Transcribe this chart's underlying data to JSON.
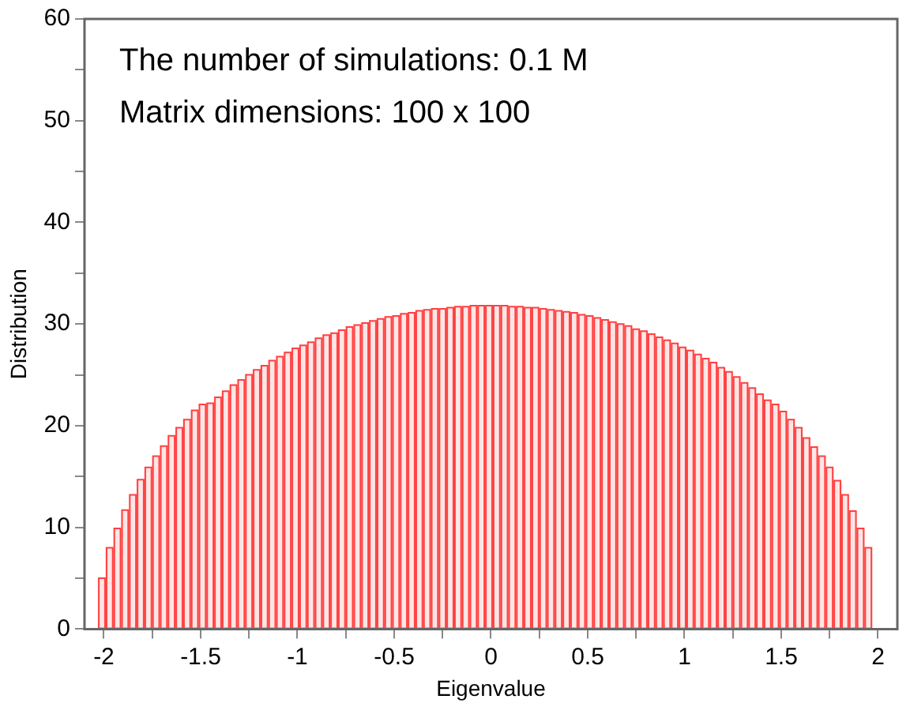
{
  "chart_data": {
    "type": "histogram",
    "xlabel": "Eigenvalue",
    "ylabel": "Distribution",
    "annotations": [
      "The number of simulations: 0.1 M",
      "Matrix dimensions: 100 x 100"
    ],
    "bins": [
      -2.03,
      -1.99,
      -1.95,
      -1.91,
      -1.87,
      -1.83,
      -1.79,
      -1.75,
      -1.71,
      -1.67,
      -1.63,
      -1.59,
      -1.55,
      -1.51,
      -1.47,
      -1.43,
      -1.39,
      -1.35,
      -1.31,
      -1.27,
      -1.23,
      -1.19,
      -1.15,
      -1.11,
      -1.07,
      -1.03,
      -0.99,
      -0.95,
      -0.91,
      -0.87,
      -0.83,
      -0.79,
      -0.75,
      -0.71,
      -0.67,
      -0.63,
      -0.59,
      -0.55,
      -0.51,
      -0.47,
      -0.43,
      -0.39,
      -0.35,
      -0.31,
      -0.27,
      -0.23,
      -0.19,
      -0.15,
      -0.11,
      -0.07,
      -0.03,
      0.01,
      0.05,
      0.09,
      0.13,
      0.17,
      0.21,
      0.25,
      0.29,
      0.33,
      0.37,
      0.41,
      0.45,
      0.49,
      0.53,
      0.57,
      0.61,
      0.65,
      0.69,
      0.73,
      0.77,
      0.81,
      0.85,
      0.89,
      0.93,
      0.97,
      1.01,
      1.05,
      1.09,
      1.13,
      1.17,
      1.21,
      1.25,
      1.29,
      1.33,
      1.37,
      1.41,
      1.45,
      1.49,
      1.53,
      1.57,
      1.61,
      1.65,
      1.69,
      1.73,
      1.77,
      1.81,
      1.85,
      1.89,
      1.93,
      1.97
    ],
    "values": [
      5.0,
      8.0,
      9.9,
      11.7,
      13.2,
      14.7,
      15.9,
      17.0,
      18.0,
      19.0,
      19.8,
      20.6,
      21.5,
      22.1,
      22.2,
      22.8,
      23.4,
      24.0,
      24.5,
      25.0,
      25.5,
      25.9,
      26.4,
      26.8,
      27.2,
      27.6,
      27.9,
      28.2,
      28.6,
      28.9,
      29.1,
      29.4,
      29.7,
      29.9,
      30.1,
      30.3,
      30.5,
      30.7,
      30.8,
      31.0,
      31.1,
      31.3,
      31.4,
      31.5,
      31.5,
      31.6,
      31.7,
      31.7,
      31.8,
      31.8,
      31.8,
      31.8,
      31.8,
      31.7,
      31.7,
      31.6,
      31.6,
      31.5,
      31.4,
      31.3,
      31.2,
      31.1,
      30.9,
      30.8,
      30.6,
      30.4,
      30.2,
      30.0,
      29.8,
      29.5,
      29.3,
      29.0,
      28.7,
      28.4,
      28.1,
      27.7,
      27.4,
      27.0,
      26.6,
      26.2,
      25.7,
      25.3,
      24.8,
      24.2,
      23.7,
      23.1,
      22.5,
      22.1,
      21.4,
      20.6,
      19.8,
      18.8,
      17.9,
      17.0,
      15.9,
      14.6,
      13.2,
      11.6,
      9.9,
      8.0
    ],
    "color": "#ff4040",
    "xlim": [
      -2.1,
      2.1
    ],
    "xticks": [
      -2,
      {
        "value": -1.75,
        "label": null
      },
      -1.5,
      {
        "value": -1.25,
        "label": null
      },
      -1,
      {
        "value": -0.75,
        "label": null
      },
      -0.5,
      {
        "value": -0.25,
        "label": null
      },
      0,
      {
        "value": 0.25,
        "label": null
      },
      0.5,
      {
        "value": 0.75,
        "label": null
      },
      1,
      {
        "value": 1.25,
        "label": null
      },
      1.5,
      {
        "value": 1.75,
        "label": null
      },
      2
    ],
    "ylim": [
      0,
      60
    ],
    "yticks": [
      0,
      {
        "value": 5,
        "label": null
      },
      10,
      {
        "value": 15,
        "label": null
      },
      20,
      {
        "value": 25,
        "label": null
      },
      30,
      {
        "value": 35,
        "label": null
      },
      40,
      {
        "value": 45,
        "label": null
      },
      50,
      {
        "value": 55,
        "label": null
      },
      60
    ]
  }
}
